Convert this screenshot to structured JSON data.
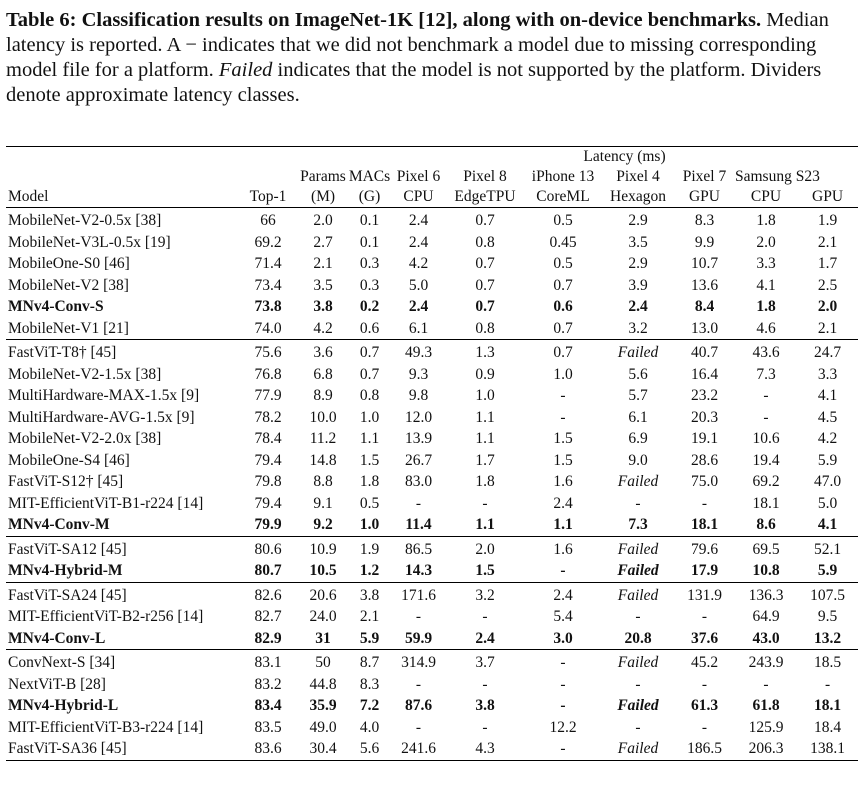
{
  "caption": {
    "bold": "Table 6: Classification results on ImageNet-1K [12], along with on-device benchmarks.",
    "text1": " Median latency is reported. A − indicates that we did not benchmark a model due to missing corresponding model file for a platform. ",
    "italic": "Failed",
    "text2": " indicates that the model is not supported by the platform. Dividers denote approximate latency classes."
  },
  "header": {
    "latency_group": "Latency (ms)",
    "row1": [
      "",
      "",
      "Params",
      "MACs",
      "Pixel 6",
      "Pixel 8",
      "iPhone 13",
      "Pixel 4",
      "Pixel 7",
      "Samsung S23",
      ""
    ],
    "row2": [
      "Model",
      "Top-1",
      "(M)",
      "(G)",
      "CPU",
      "EdgeTPU",
      "CoreML",
      "Hexagon",
      "GPU",
      "CPU",
      "GPU"
    ]
  },
  "groups": [
    {
      "rows": [
        {
          "bold": false,
          "cells": [
            "MobileNet-V2-0.5x [38]",
            "66",
            "2.0",
            "0.1",
            "2.4",
            "0.7",
            "0.5",
            "2.9",
            "8.3",
            "1.8",
            "1.9"
          ]
        },
        {
          "bold": false,
          "cells": [
            "MobileNet-V3L-0.5x [19]",
            "69.2",
            "2.7",
            "0.1",
            "2.4",
            "0.8",
            "0.45",
            "3.5",
            "9.9",
            "2.0",
            "2.1"
          ]
        },
        {
          "bold": false,
          "cells": [
            "MobileOne-S0 [46]",
            "71.4",
            "2.1",
            "0.3",
            "4.2",
            "0.7",
            "0.5",
            "2.9",
            "10.7",
            "3.3",
            "1.7"
          ]
        },
        {
          "bold": false,
          "cells": [
            "MobileNet-V2 [38]",
            "73.4",
            "3.5",
            "0.3",
            "5.0",
            "0.7",
            "0.7",
            "3.9",
            "13.6",
            "4.1",
            "2.5"
          ]
        },
        {
          "bold": true,
          "cells": [
            "MNv4-Conv-S",
            "73.8",
            "3.8",
            "0.2",
            "2.4",
            "0.7",
            "0.6",
            "2.4",
            "8.4",
            "1.8",
            "2.0"
          ]
        },
        {
          "bold": false,
          "cells": [
            "MobileNet-V1 [21]",
            "74.0",
            "4.2",
            "0.6",
            "6.1",
            "0.8",
            "0.7",
            "3.2",
            "13.0",
            "4.6",
            "2.1"
          ]
        }
      ]
    },
    {
      "rows": [
        {
          "bold": false,
          "cells": [
            "FastViT-T8† [45]",
            "75.6",
            "3.6",
            "0.7",
            "49.3",
            "1.3",
            "0.7",
            "Failed",
            "40.7",
            "43.6",
            "24.7"
          ]
        },
        {
          "bold": false,
          "cells": [
            "MobileNet-V2-1.5x [38]",
            "76.8",
            "6.8",
            "0.7",
            "9.3",
            "0.9",
            "1.0",
            "5.6",
            "16.4",
            "7.3",
            "3.3"
          ]
        },
        {
          "bold": false,
          "cells": [
            "MultiHardware-MAX-1.5x [9]",
            "77.9",
            "8.9",
            "0.8",
            "9.8",
            "1.0",
            "-",
            "5.7",
            "23.2",
            "-",
            "4.1"
          ]
        },
        {
          "bold": false,
          "cells": [
            "MultiHardware-AVG-1.5x [9]",
            "78.2",
            "10.0",
            "1.0",
            "12.0",
            "1.1",
            "-",
            "6.1",
            "20.3",
            "-",
            "4.5"
          ]
        },
        {
          "bold": false,
          "cells": [
            "MobileNet-V2-2.0x [38]",
            "78.4",
            "11.2",
            "1.1",
            "13.9",
            "1.1",
            "1.5",
            "6.9",
            "19.1",
            "10.6",
            "4.2"
          ]
        },
        {
          "bold": false,
          "cells": [
            "MobileOne-S4 [46]",
            "79.4",
            "14.8",
            "1.5",
            "26.7",
            "1.7",
            "1.5",
            "9.0",
            "28.6",
            "19.4",
            "5.9"
          ]
        },
        {
          "bold": false,
          "cells": [
            "FastViT-S12† [45]",
            "79.8",
            "8.8",
            "1.8",
            "83.0",
            "1.8",
            "1.6",
            "Failed",
            "75.0",
            "69.2",
            "47.0"
          ]
        },
        {
          "bold": false,
          "cells": [
            "MIT-EfficientViT-B1-r224 [14]",
            "79.4",
            "9.1",
            "0.5",
            "-",
            "-",
            "2.4",
            "-",
            "-",
            "18.1",
            "5.0"
          ]
        },
        {
          "bold": true,
          "cells": [
            "MNv4-Conv-M",
            "79.9",
            "9.2",
            "1.0",
            "11.4",
            "1.1",
            "1.1",
            "7.3",
            "18.1",
            "8.6",
            "4.1"
          ]
        }
      ]
    },
    {
      "rows": [
        {
          "bold": false,
          "cells": [
            "FastViT-SA12 [45]",
            "80.6",
            "10.9",
            "1.9",
            "86.5",
            "2.0",
            "1.6",
            "Failed",
            "79.6",
            "69.5",
            "52.1"
          ]
        },
        {
          "bold": true,
          "cells": [
            "MNv4-Hybrid-M",
            "80.7",
            "10.5",
            "1.2",
            "14.3",
            "1.5",
            "-",
            "Failed",
            "17.9",
            "10.8",
            "5.9"
          ]
        }
      ]
    },
    {
      "rows": [
        {
          "bold": false,
          "cells": [
            "FastViT-SA24 [45]",
            "82.6",
            "20.6",
            "3.8",
            "171.6",
            "3.2",
            "2.4",
            "Failed",
            "131.9",
            "136.3",
            "107.5"
          ]
        },
        {
          "bold": false,
          "cells": [
            "MIT-EfficientViT-B2-r256 [14]",
            "82.7",
            "24.0",
            "2.1",
            "-",
            "-",
            "5.4",
            "-",
            "-",
            "64.9",
            "9.5"
          ]
        },
        {
          "bold": true,
          "cells": [
            "MNv4-Conv-L",
            "82.9",
            "31",
            "5.9",
            "59.9",
            "2.4",
            "3.0",
            "20.8",
            "37.6",
            "43.0",
            "13.2"
          ]
        }
      ]
    },
    {
      "rows": [
        {
          "bold": false,
          "cells": [
            "ConvNext-S [34]",
            "83.1",
            "50",
            "8.7",
            "314.9",
            "3.7",
            "-",
            "Failed",
            "45.2",
            "243.9",
            "18.5"
          ]
        },
        {
          "bold": false,
          "cells": [
            "NextViT-B [28]",
            "83.2",
            "44.8",
            "8.3",
            "-",
            "-",
            "-",
            "-",
            "-",
            "-",
            "-"
          ]
        },
        {
          "bold": true,
          "cells": [
            "MNv4-Hybrid-L",
            "83.4",
            "35.9",
            "7.2",
            "87.6",
            "3.8",
            "-",
            "Failed",
            "61.3",
            "61.8",
            "18.1"
          ]
        },
        {
          "bold": false,
          "cells": [
            "MIT-EfficientViT-B3-r224 [14]",
            "83.5",
            "49.0",
            "4.0",
            "-",
            "-",
            "12.2",
            "-",
            "-",
            "125.9",
            "18.4"
          ]
        },
        {
          "bold": false,
          "cells": [
            "FastViT-SA36 [45]",
            "83.6",
            "30.4",
            "5.6",
            "241.6",
            "4.3",
            "-",
            "Failed",
            "186.5",
            "206.3",
            "138.1"
          ]
        }
      ]
    }
  ]
}
